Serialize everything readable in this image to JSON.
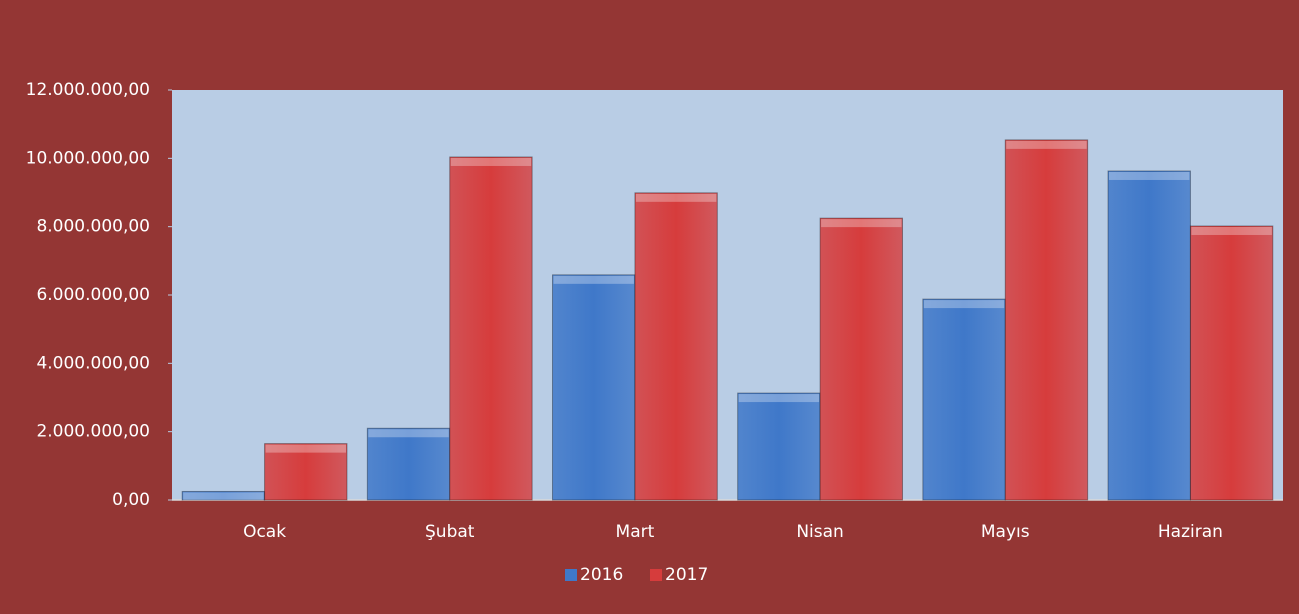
{
  "chart_data": {
    "type": "bar",
    "categories": [
      "Ocak",
      "Şubat",
      "Mart",
      "Nisan",
      "Mayıs",
      "Haziran"
    ],
    "series": [
      {
        "name": "2016",
        "color": "#3f78c9",
        "values": [
          250000,
          2100000,
          6590000,
          3130000,
          5880000,
          9630000
        ]
      },
      {
        "name": "2017",
        "color": "#d63c3c",
        "values": [
          1650000,
          10040000,
          8990000,
          8250000,
          10540000,
          8020000
        ]
      }
    ],
    "ylim": [
      0,
      12000000
    ],
    "yticks": [
      {
        "value": 0,
        "label": "0,00"
      },
      {
        "value": 2000000,
        "label": "2.000.000,00"
      },
      {
        "value": 4000000,
        "label": "4.000.000,00"
      },
      {
        "value": 6000000,
        "label": "6.000.000,00"
      },
      {
        "value": 8000000,
        "label": "8.000.000,00"
      },
      {
        "value": 10000000,
        "label": "10.000.000,00"
      },
      {
        "value": 12000000,
        "label": "12.000.000,00"
      }
    ],
    "legend": "bottom"
  }
}
